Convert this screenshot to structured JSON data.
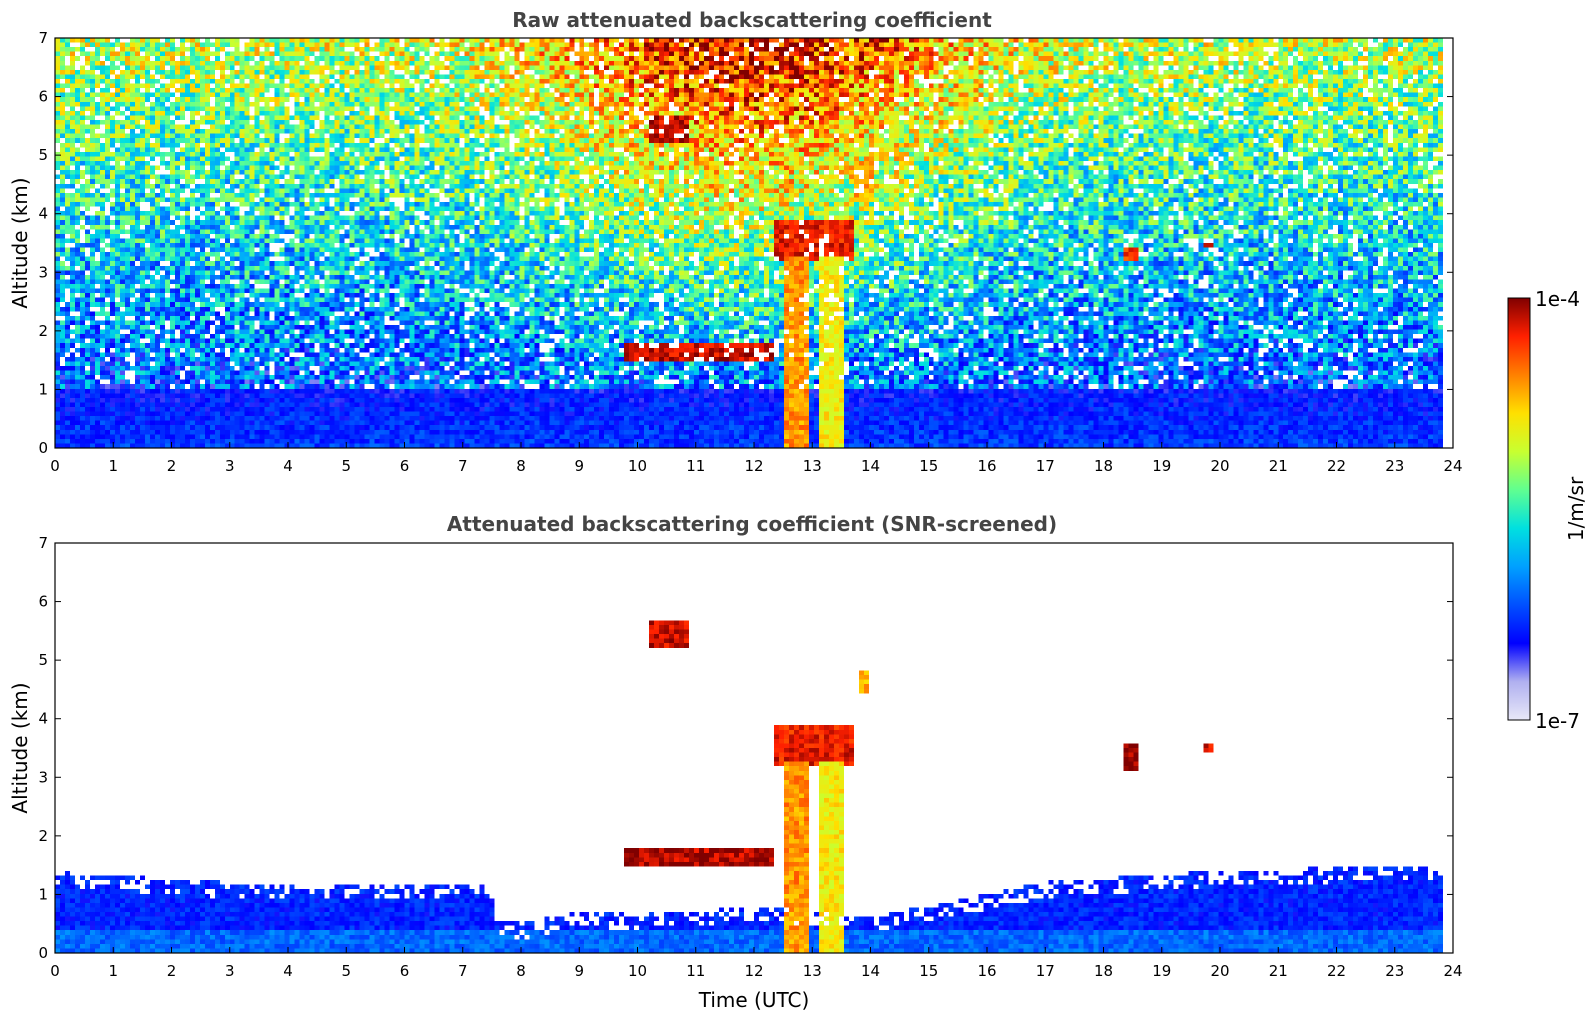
{
  "chart_data": [
    {
      "type": "heatmap",
      "title": "Raw attenuated backscattering coefficient",
      "xlabel": "",
      "ylabel": "Altitude (km)",
      "xlim": [
        0,
        24
      ],
      "ylim": [
        0,
        7
      ],
      "xticks": [
        0,
        1,
        2,
        3,
        4,
        5,
        6,
        7,
        8,
        9,
        10,
        11,
        12,
        13,
        14,
        15,
        16,
        17,
        18,
        19,
        20,
        21,
        22,
        23,
        24
      ],
      "yticks": [
        0,
        1,
        2,
        3,
        4,
        5,
        6,
        7
      ],
      "data_end_time": 23.8,
      "features": [
        {
          "kind": "boundary_layer",
          "from_time": 0,
          "to_time": 23.8,
          "top_km": 1.0,
          "level": 0.25
        },
        {
          "kind": "cloud",
          "from_time": 12.3,
          "to_time": 13.7,
          "base_km": 3.2,
          "top_km": 3.9,
          "level": 0.92
        },
        {
          "kind": "precipitation_column",
          "from_time": 12.5,
          "to_time": 12.95,
          "top_km": 3.3,
          "level": 0.8
        },
        {
          "kind": "precipitation_column",
          "from_time": 13.1,
          "to_time": 13.5,
          "top_km": 3.3,
          "level": 0.7
        },
        {
          "kind": "cloud",
          "from_time": 10.2,
          "to_time": 10.9,
          "base_km": 5.2,
          "top_km": 5.7,
          "level": 0.95
        },
        {
          "kind": "cloud",
          "from_time": 13.7,
          "to_time": 14.1,
          "base_km": 4.2,
          "top_km": 4.9,
          "level": 0.78
        },
        {
          "kind": "cloud",
          "from_time": 9.8,
          "to_time": 12.3,
          "base_km": 1.5,
          "top_km": 1.8,
          "level": 0.95
        },
        {
          "kind": "cloud",
          "from_time": 18.3,
          "to_time": 18.6,
          "base_km": 3.2,
          "top_km": 3.4,
          "level": 0.9
        },
        {
          "kind": "cloud",
          "from_time": 19.7,
          "to_time": 19.85,
          "base_km": 3.4,
          "top_km": 3.6,
          "level": 0.9
        }
      ]
    },
    {
      "type": "heatmap",
      "title": "Attenuated backscattering coefficient (SNR-screened)",
      "xlabel": "Time (UTC)",
      "ylabel": "Altitude (km)",
      "xlim": [
        0,
        24
      ],
      "ylim": [
        0,
        7
      ],
      "xticks": [
        0,
        1,
        2,
        3,
        4,
        5,
        6,
        7,
        8,
        9,
        10,
        11,
        12,
        13,
        14,
        15,
        16,
        17,
        18,
        19,
        20,
        21,
        22,
        23,
        24
      ],
      "yticks": [
        0,
        1,
        2,
        3,
        4,
        5,
        6,
        7
      ],
      "data_end_time": 23.8,
      "boundary_layer_top_km": [
        {
          "time": 0,
          "top": 1.4
        },
        {
          "time": 2,
          "top": 1.25
        },
        {
          "time": 4,
          "top": 1.15
        },
        {
          "time": 6,
          "top": 1.15
        },
        {
          "time": 7.5,
          "top": 1.2
        },
        {
          "time": 7.6,
          "top": 0.6
        },
        {
          "time": 8,
          "top": 0.5
        },
        {
          "time": 9,
          "top": 0.7
        },
        {
          "time": 10,
          "top": 0.65
        },
        {
          "time": 11,
          "top": 0.7
        },
        {
          "time": 12,
          "top": 0.8
        },
        {
          "time": 14,
          "top": 0.6
        },
        {
          "time": 15,
          "top": 0.8
        },
        {
          "time": 16,
          "top": 1.0
        },
        {
          "time": 17,
          "top": 1.2
        },
        {
          "time": 20,
          "top": 1.4
        },
        {
          "time": 23.8,
          "top": 1.5
        }
      ],
      "features": [
        {
          "kind": "cloud",
          "from_time": 12.3,
          "to_time": 13.7,
          "base_km": 3.2,
          "top_km": 3.9,
          "level": 0.92
        },
        {
          "kind": "precipitation_column",
          "from_time": 12.5,
          "to_time": 12.95,
          "top_km": 3.3,
          "level": 0.8
        },
        {
          "kind": "precipitation_column",
          "from_time": 13.1,
          "to_time": 13.5,
          "top_km": 3.3,
          "level": 0.7
        },
        {
          "kind": "cloud",
          "from_time": 10.2,
          "to_time": 10.9,
          "base_km": 5.2,
          "top_km": 5.7,
          "level": 0.95
        },
        {
          "kind": "cloud",
          "from_time": 13.8,
          "to_time": 14.0,
          "base_km": 4.4,
          "top_km": 4.8,
          "level": 0.78
        },
        {
          "kind": "cloud",
          "from_time": 9.8,
          "to_time": 12.3,
          "base_km": 1.5,
          "top_km": 1.8,
          "level": 0.97
        },
        {
          "kind": "cloud",
          "from_time": 18.3,
          "to_time": 18.6,
          "base_km": 3.1,
          "top_km": 3.6,
          "level": 0.99
        },
        {
          "kind": "cloud",
          "from_time": 19.7,
          "to_time": 19.85,
          "base_km": 3.4,
          "top_km": 3.6,
          "level": 0.95
        }
      ]
    }
  ],
  "colorbar": {
    "label": "1/m/sr",
    "min_label": "1e-7",
    "max_label": "1e-4",
    "scale": "log",
    "colors": [
      "#e8e8f8",
      "#b0b0f0",
      "#0000ff",
      "#0050ff",
      "#00a0ff",
      "#00e0e0",
      "#60ff90",
      "#c8ff30",
      "#ffe000",
      "#ff8000",
      "#ff2000",
      "#800000"
    ]
  }
}
